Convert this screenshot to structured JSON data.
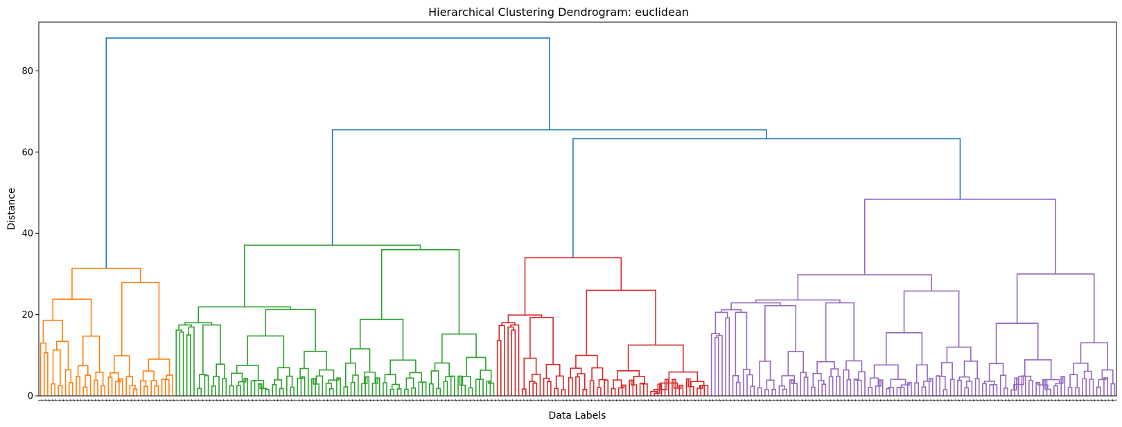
{
  "chart_data": {
    "type": "dendrogram",
    "title": "Hierarchical  Clustering Dendrogram: euclidean",
    "xlabel": "Data Labels",
    "ylabel": "Distance",
    "ylim": [
      0,
      92
    ],
    "yticks": [
      0,
      20,
      40,
      60,
      80
    ],
    "leaf_label": "1",
    "link_color": "#1f77b4",
    "frame_color": "#000000",
    "clusters": [
      {
        "color": "#ff7f0e",
        "leaves": 38,
        "height": 31.4,
        "subheights": [
          23.8,
          27.9,
          18.6,
          14.7,
          13.0,
          13.4,
          10.6,
          11.3
        ]
      },
      {
        "color": "#2ca02c",
        "leaves": 90,
        "height": 37.1,
        "subheights": [
          21.9,
          37.0,
          18.0,
          32.0,
          22.9,
          24.6,
          16.2,
          20.9,
          17.0,
          15.0
        ]
      },
      {
        "color": "#d62728",
        "leaves": 60,
        "height": 34.0,
        "subheights": [
          19.9,
          26.0,
          18.0,
          22.9,
          17.3,
          20.2,
          13.6,
          19.7,
          16.2
        ]
      },
      {
        "color": "#9467bd",
        "leaves": 114,
        "height": 48.4,
        "subheights": [
          29.8,
          30.0,
          23.6,
          25.8,
          25.2,
          29.3,
          21.2,
          22.9,
          20.8,
          23.1,
          15.3,
          19.2,
          16.8,
          15.9
        ]
      }
    ],
    "links": [
      {
        "joins": [
          "cluster 3",
          "cluster 4"
        ],
        "height": 63.3
      },
      {
        "joins": [
          "cluster 2",
          "clusters 3+4"
        ],
        "height": 65.5
      },
      {
        "joins": [
          "cluster 1",
          "clusters 2+3+4"
        ],
        "height": 88.1
      }
    ]
  }
}
